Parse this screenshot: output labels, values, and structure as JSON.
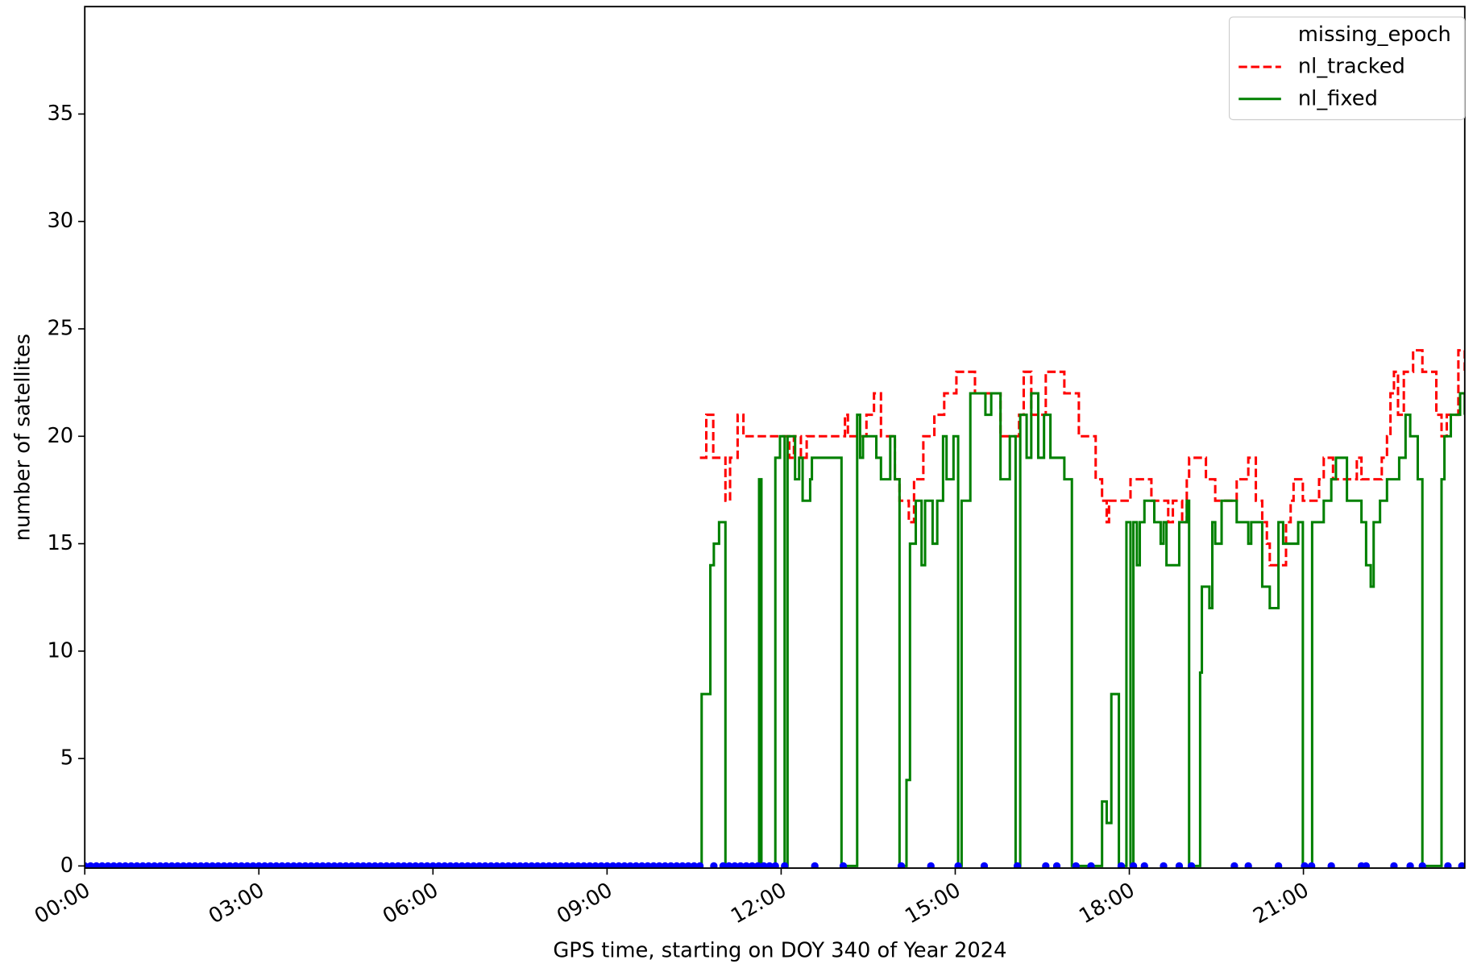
{
  "chart_data": {
    "type": "line",
    "xlabel": "GPS time, starting on DOY 340 of Year 2024",
    "ylabel": "number of satellites",
    "xlim": [
      0,
      23.78
    ],
    "ylim": [
      -0.1,
      40
    ],
    "xticks": [
      {
        "value": 0,
        "label": "00:00"
      },
      {
        "value": 3,
        "label": "03:00"
      },
      {
        "value": 6,
        "label": "06:00"
      },
      {
        "value": 9,
        "label": "09:00"
      },
      {
        "value": 12,
        "label": "12:00"
      },
      {
        "value": 15,
        "label": "15:00"
      },
      {
        "value": 18,
        "label": "18:00"
      },
      {
        "value": 21,
        "label": "21:00"
      }
    ],
    "yticks": [
      0,
      5,
      10,
      15,
      20,
      25,
      30,
      35
    ],
    "legend": "upper right",
    "series": [
      {
        "name": "missing_epoch",
        "color": "#0000ff",
        "style": "dots",
        "x": [
          0,
          0.1,
          0.2,
          0.3,
          0.4,
          0.5,
          0.6,
          0.7,
          0.8,
          0.9,
          1,
          1.1,
          1.2,
          1.3,
          1.4,
          1.5,
          1.6,
          1.7,
          1.8,
          1.9,
          2,
          2.1,
          2.2,
          2.3,
          2.4,
          2.5,
          2.6,
          2.7,
          2.8,
          2.9,
          3,
          3.1,
          3.2,
          3.3,
          3.4,
          3.5,
          3.6,
          3.7,
          3.8,
          3.9,
          4,
          4.1,
          4.2,
          4.3,
          4.4,
          4.5,
          4.6,
          4.7,
          4.8,
          4.9,
          5,
          5.1,
          5.2,
          5.3,
          5.4,
          5.5,
          5.6,
          5.7,
          5.8,
          5.9,
          6,
          6.1,
          6.2,
          6.3,
          6.4,
          6.5,
          6.6,
          6.7,
          6.8,
          6.9,
          7,
          7.1,
          7.2,
          7.3,
          7.4,
          7.5,
          7.6,
          7.7,
          7.8,
          7.9,
          8,
          8.1,
          8.2,
          8.3,
          8.4,
          8.5,
          8.6,
          8.7,
          8.8,
          8.9,
          9,
          9.1,
          9.2,
          9.3,
          9.4,
          9.5,
          9.6,
          9.7,
          9.8,
          9.9,
          10,
          10.1,
          10.2,
          10.3,
          10.4,
          10.5,
          10.6,
          10.84,
          11.0,
          11.1,
          11.2,
          11.3,
          11.4,
          11.5,
          11.6,
          11.7,
          11.8,
          11.9,
          12.06,
          12.58,
          13.07,
          14.07,
          14.58,
          15.05,
          15.5,
          16.07,
          16.56,
          16.75,
          17.08,
          17.34,
          17.86,
          18.07,
          18.26,
          18.59,
          18.86,
          19.07,
          19.81,
          20.05,
          20.57,
          21.02,
          21.14,
          21.48,
          22.0,
          22.08,
          22.56,
          22.84,
          23.05,
          23.49,
          23.73
        ],
        "values": [
          0,
          0,
          0,
          0,
          0,
          0,
          0,
          0,
          0,
          0,
          0,
          0,
          0,
          0,
          0,
          0,
          0,
          0,
          0,
          0,
          0,
          0,
          0,
          0,
          0,
          0,
          0,
          0,
          0,
          0,
          0,
          0,
          0,
          0,
          0,
          0,
          0,
          0,
          0,
          0,
          0,
          0,
          0,
          0,
          0,
          0,
          0,
          0,
          0,
          0,
          0,
          0,
          0,
          0,
          0,
          0,
          0,
          0,
          0,
          0,
          0,
          0,
          0,
          0,
          0,
          0,
          0,
          0,
          0,
          0,
          0,
          0,
          0,
          0,
          0,
          0,
          0,
          0,
          0,
          0,
          0,
          0,
          0,
          0,
          0,
          0,
          0,
          0,
          0,
          0,
          0,
          0,
          0,
          0,
          0,
          0,
          0,
          0,
          0,
          0,
          0,
          0,
          0,
          0,
          0,
          0,
          0,
          0,
          0,
          0,
          0,
          0,
          0,
          0,
          0,
          0,
          0,
          0,
          0,
          0,
          0,
          0,
          0,
          0,
          0,
          0,
          0,
          0,
          0,
          0,
          0,
          0,
          0,
          0,
          0,
          0,
          0,
          0,
          0,
          0,
          0,
          0,
          0,
          0,
          0,
          0,
          0,
          0,
          0
        ]
      },
      {
        "name": "nl_tracked",
        "color": "#ff0000",
        "style": "dashed",
        "x": [
          10.6,
          10.71,
          10.83,
          11.04,
          11.12,
          11.25,
          11.35,
          12.14,
          12.22,
          12.34,
          12.44,
          13.1,
          13.15,
          13.47,
          13.6,
          13.72,
          13.96,
          14.04,
          14.2,
          14.29,
          14.45,
          14.64,
          14.81,
          15.02,
          15.34,
          15.78,
          16.1,
          16.18,
          16.31,
          16.56,
          16.88,
          17.13,
          17.42,
          17.53,
          17.61,
          17.65,
          18.02,
          18.38,
          18.67,
          18.75,
          18.91,
          18.99,
          19.03,
          19.32,
          19.48,
          19.85,
          20.05,
          20.18,
          20.29,
          20.37,
          20.42,
          20.7,
          20.78,
          20.83,
          20.99,
          21.27,
          21.35,
          21.51,
          21.92,
          22.0,
          22.35,
          22.44,
          22.5,
          22.56,
          22.63,
          22.73,
          22.89,
          23.05,
          23.29,
          23.38,
          23.47,
          23.67,
          23.78
        ],
        "values": [
          19,
          21,
          19,
          17,
          19,
          21,
          20,
          19,
          20,
          19,
          20,
          21,
          20,
          21,
          22,
          20,
          18,
          17,
          16,
          18,
          20,
          21,
          22,
          23,
          22,
          20,
          21,
          23,
          21,
          23,
          22,
          20,
          18,
          17,
          16,
          17,
          18,
          17,
          16,
          17,
          16,
          18,
          19,
          18,
          17,
          18,
          19,
          17,
          16,
          15,
          14,
          16,
          17,
          18,
          17,
          18,
          19,
          18,
          19,
          18,
          19,
          20,
          22,
          23,
          21,
          23,
          24,
          23,
          21,
          20,
          21,
          24,
          23
        ]
      },
      {
        "name": "nl_fixed",
        "color": "#008000",
        "style": "solid",
        "x": [
          10.6,
          10.63,
          10.78,
          10.84,
          10.93,
          11.04,
          11.62,
          11.66,
          11.9,
          11.98,
          12.06,
          12.11,
          12.24,
          12.31,
          12.37,
          12.5,
          12.53,
          13.04,
          13.31,
          13.36,
          13.41,
          13.64,
          13.72,
          13.88,
          13.96,
          14.04,
          14.16,
          14.22,
          14.32,
          14.42,
          14.48,
          14.61,
          14.69,
          14.79,
          14.85,
          14.97,
          15.05,
          15.11,
          15.26,
          15.52,
          15.62,
          15.78,
          15.94,
          16.04,
          16.12,
          16.23,
          16.31,
          16.43,
          16.53,
          16.64,
          16.88,
          17.01,
          17.53,
          17.61,
          17.69,
          17.82,
          17.95,
          18.02,
          18.07,
          18.13,
          18.18,
          18.26,
          18.43,
          18.54,
          18.59,
          18.64,
          18.86,
          18.99,
          19.03,
          19.22,
          19.25,
          19.38,
          19.43,
          19.48,
          19.59,
          19.85,
          20.05,
          20.1,
          20.29,
          20.42,
          20.57,
          20.65,
          20.91,
          20.99,
          21.15,
          21.35,
          21.48,
          21.56,
          21.75,
          22.0,
          22.08,
          22.16,
          22.21,
          22.32,
          22.44,
          22.65,
          22.76,
          22.84,
          22.97,
          23.05,
          23.38,
          23.43,
          23.54,
          23.7,
          23.78
        ],
        "values": [
          0,
          8,
          14,
          15,
          16,
          0,
          18,
          0,
          19,
          20,
          0,
          20,
          18,
          19,
          17,
          18,
          19,
          0,
          21,
          19,
          20,
          19,
          18,
          20,
          18,
          0,
          4,
          15,
          17,
          14,
          17,
          15,
          17,
          20,
          18,
          20,
          0,
          17,
          22,
          21,
          22,
          18,
          20,
          0,
          21,
          19,
          22,
          19,
          21,
          19,
          18,
          0,
          3,
          2,
          8,
          0,
          16,
          0,
          16,
          14,
          16,
          17,
          16,
          15,
          16,
          14,
          16,
          17,
          0,
          9,
          13,
          12,
          16,
          15,
          17,
          16,
          15,
          16,
          13,
          12,
          16,
          15,
          16,
          0,
          16,
          17,
          18,
          19,
          17,
          16,
          14,
          13,
          16,
          17,
          18,
          19,
          21,
          20,
          18,
          0,
          18,
          20,
          21,
          22,
          21
        ]
      }
    ]
  }
}
